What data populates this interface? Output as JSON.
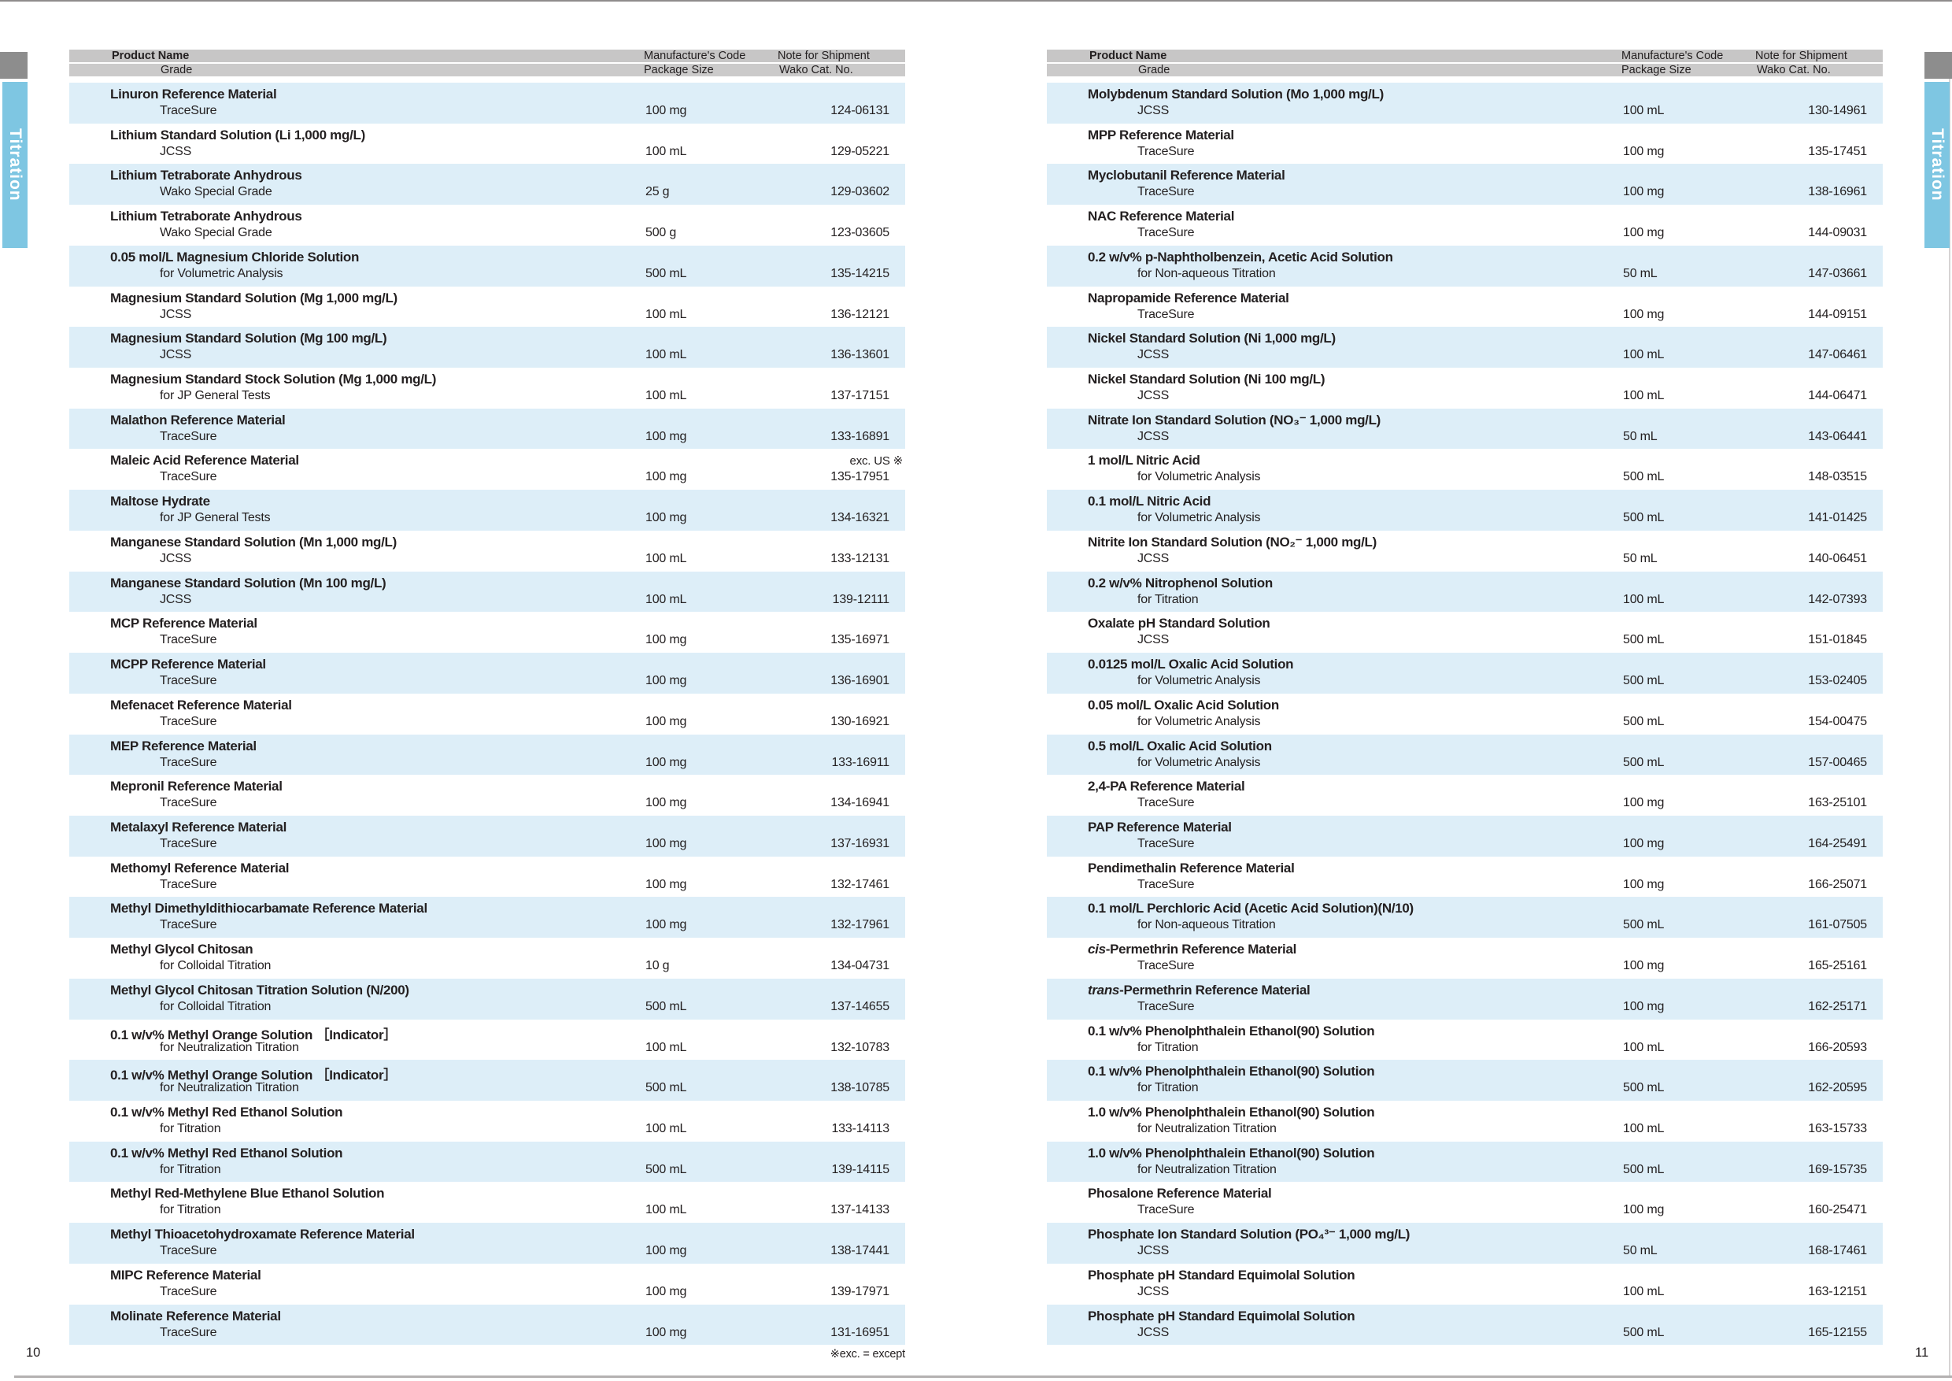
{
  "page": {
    "left_page_number": "10",
    "right_page_number": "11",
    "footnote": "※exc. = except",
    "side_tab_label": "Titration"
  },
  "colors": {
    "tab_blue": "#7ec6e2",
    "row_stripe_blue": "#ddeef8",
    "header_gray": "#c7c6c6",
    "corner_gray": "#8d8d8d"
  },
  "table_headers": {
    "col1_line1": "Product Name",
    "col1_line2": "Grade",
    "col2_line1": "Manufacture's Code",
    "col2_line2": "Package Size",
    "col3_line1": "Note for Shipment",
    "col3_line2": "Wako Cat. No."
  },
  "left_table": {
    "rows": [
      {
        "name": "Linuron Reference Material",
        "grade": "TraceSure",
        "size": "100 mg",
        "cat": "124-06131"
      },
      {
        "name": "Lithium Standard Solution (Li 1,000 mg/L)",
        "grade": "JCSS",
        "size": "100 mL",
        "cat": "129-05221"
      },
      {
        "name": "Lithium Tetraborate Anhydrous",
        "grade": "Wako Special Grade",
        "size": "25 g",
        "cat": "129-03602"
      },
      {
        "name": "Lithium Tetraborate Anhydrous",
        "grade": "Wako Special Grade",
        "size": "500 g",
        "cat": "123-03605"
      },
      {
        "name": "0.05 mol/L Magnesium Chloride Solution",
        "grade": "for Volumetric Analysis",
        "size": "500 mL",
        "cat": "135-14215"
      },
      {
        "name": "Magnesium Standard Solution (Mg 1,000 mg/L)",
        "grade": "JCSS",
        "size": "100 mL",
        "cat": "136-12121"
      },
      {
        "name": "Magnesium Standard Solution (Mg 100 mg/L)",
        "grade": "JCSS",
        "size": "100 mL",
        "cat": "136-13601"
      },
      {
        "name": "Magnesium Standard Stock Solution (Mg 1,000 mg/L)",
        "grade": "for JP General Tests",
        "size": "100 mL",
        "cat": "137-17151"
      },
      {
        "name": "Malathon Reference Material",
        "grade": "TraceSure",
        "size": "100 mg",
        "cat": "133-16891"
      },
      {
        "name": "Maleic Acid Reference Material",
        "grade": "TraceSure",
        "size": "100 mg",
        "cat": "135-17951",
        "note": "exc. US ※"
      },
      {
        "name": "Maltose Hydrate",
        "grade": "for JP General Tests",
        "size": "100 mg",
        "cat": "134-16321"
      },
      {
        "name": "Manganese Standard Solution (Mn 1,000 mg/L)",
        "grade": "JCSS",
        "size": "100 mL",
        "cat": "133-12131"
      },
      {
        "name": "Manganese Standard Solution (Mn 100 mg/L)",
        "grade": "JCSS",
        "size": "100 mL",
        "cat": "139-12111"
      },
      {
        "name": "MCP Reference Material",
        "grade": "TraceSure",
        "size": "100 mg",
        "cat": "135-16971"
      },
      {
        "name": "MCPP Reference Material",
        "grade": "TraceSure",
        "size": "100 mg",
        "cat": "136-16901"
      },
      {
        "name": "Mefenacet Reference Material",
        "grade": "TraceSure",
        "size": "100 mg",
        "cat": "130-16921"
      },
      {
        "name": "MEP Reference Material",
        "grade": "TraceSure",
        "size": "100 mg",
        "cat": "133-16911"
      },
      {
        "name": "Mepronil Reference Material",
        "grade": "TraceSure",
        "size": "100 mg",
        "cat": "134-16941"
      },
      {
        "name": "Metalaxyl Reference Material",
        "grade": "TraceSure",
        "size": "100 mg",
        "cat": "137-16931"
      },
      {
        "name": "Methomyl Reference Material",
        "grade": "TraceSure",
        "size": "100 mg",
        "cat": "132-17461"
      },
      {
        "name": "Methyl Dimethyldithiocarbamate Reference Material",
        "grade": "TraceSure",
        "size": "100 mg",
        "cat": "132-17961"
      },
      {
        "name": "Methyl Glycol Chitosan",
        "grade": "for Colloidal Titration",
        "size": "10 g",
        "cat": "134-04731"
      },
      {
        "name": "Methyl Glycol Chitosan Titration Solution (N/200)",
        "grade": "for Colloidal Titration",
        "size": "500 mL",
        "cat": "137-14655"
      },
      {
        "name": "0.1 w/v% Methyl Orange Solution ［Indicator］",
        "grade": "for Neutralization Titration",
        "size": "100 mL",
        "cat": "132-10783"
      },
      {
        "name": "0.1 w/v% Methyl Orange Solution ［Indicator］",
        "grade": "for Neutralization Titration",
        "size": "500 mL",
        "cat": "138-10785"
      },
      {
        "name": "0.1 w/v% Methyl Red Ethanol Solution",
        "grade": "for Titration",
        "size": "100 mL",
        "cat": "133-14113"
      },
      {
        "name": "0.1 w/v% Methyl Red Ethanol Solution",
        "grade": "for Titration",
        "size": "500 mL",
        "cat": "139-14115"
      },
      {
        "name": "Methyl Red-Methylene Blue Ethanol Solution",
        "grade": "for Titration",
        "size": "100 mL",
        "cat": "137-14133"
      },
      {
        "name": "Methyl Thioacetohydroxamate Reference Material",
        "grade": "TraceSure",
        "size": "100 mg",
        "cat": "138-17441"
      },
      {
        "name": "MIPC Reference Material",
        "grade": "TraceSure",
        "size": "100 mg",
        "cat": "139-17971"
      },
      {
        "name": "Molinate Reference Material",
        "grade": "TraceSure",
        "size": "100 mg",
        "cat": "131-16951"
      }
    ]
  },
  "right_table": {
    "rows": [
      {
        "name": "Molybdenum Standard Solution (Mo 1,000 mg/L)",
        "grade": "JCSS",
        "size": "100 mL",
        "cat": "130-14961"
      },
      {
        "name": "MPP Reference Material",
        "grade": "TraceSure",
        "size": "100 mg",
        "cat": "135-17451"
      },
      {
        "name": "Myclobutanil Reference Material",
        "grade": "TraceSure",
        "size": "100 mg",
        "cat": "138-16961"
      },
      {
        "name": "NAC Reference Material",
        "grade": "TraceSure",
        "size": "100 mg",
        "cat": "144-09031"
      },
      {
        "name": "0.2 w/v% p-Naphtholbenzein, Acetic Acid Solution",
        "grade": "for Non-aqueous Titration",
        "size": "50 mL",
        "cat": "147-03661"
      },
      {
        "name": "Napropamide Reference Material",
        "grade": "TraceSure",
        "size": "100 mg",
        "cat": "144-09151"
      },
      {
        "name": "Nickel Standard Solution (Ni 1,000 mg/L)",
        "grade": "JCSS",
        "size": "100 mL",
        "cat": "147-06461"
      },
      {
        "name": "Nickel Standard Solution (Ni 100 mg/L)",
        "grade": "JCSS",
        "size": "100 mL",
        "cat": "144-06471"
      },
      {
        "name": "Nitrate Ion Standard Solution (NO₃⁻ 1,000 mg/L)",
        "grade": "JCSS",
        "size": "50 mL",
        "cat": "143-06441"
      },
      {
        "name": "1 mol/L Nitric Acid",
        "grade": "for Volumetric Analysis",
        "size": "500 mL",
        "cat": "148-03515"
      },
      {
        "name": "0.1 mol/L Nitric Acid",
        "grade": "for Volumetric Analysis",
        "size": "500 mL",
        "cat": "141-01425"
      },
      {
        "name": "Nitrite Ion Standard Solution (NO₂⁻ 1,000 mg/L)",
        "grade": "JCSS",
        "size": "50 mL",
        "cat": "140-06451"
      },
      {
        "name": "0.2 w/v% Nitrophenol Solution",
        "grade": "for Titration",
        "size": "100 mL",
        "cat": "142-07393"
      },
      {
        "name": "Oxalate pH Standard Solution",
        "grade": "JCSS",
        "size": "500 mL",
        "cat": "151-01845"
      },
      {
        "name": "0.0125 mol/L Oxalic Acid Solution",
        "grade": "for Volumetric Analysis",
        "size": "500 mL",
        "cat": "153-02405"
      },
      {
        "name": "0.05 mol/L Oxalic Acid Solution",
        "grade": "for Volumetric Analysis",
        "size": "500 mL",
        "cat": "154-00475"
      },
      {
        "name": "0.5 mol/L Oxalic Acid Solution",
        "grade": "for Volumetric Analysis",
        "size": "500 mL",
        "cat": "157-00465"
      },
      {
        "name": "2,4-PA Reference Material",
        "grade": "TraceSure",
        "size": "100 mg",
        "cat": "163-25101"
      },
      {
        "name": "PAP Reference Material",
        "grade": "TraceSure",
        "size": "100 mg",
        "cat": "164-25491"
      },
      {
        "name": "Pendimethalin Reference Material",
        "grade": "TraceSure",
        "size": "100 mg",
        "cat": "166-25071"
      },
      {
        "name": "0.1 mol/L Perchloric Acid (Acetic Acid Solution)(N/10)",
        "grade": "for Non-aqueous Titration",
        "size": "500 mL",
        "cat": "161-07505"
      },
      {
        "name": "cis-Permethrin Reference Material",
        "grade": "TraceSure",
        "size": "100 mg",
        "cat": "165-25161"
      },
      {
        "name": "trans-Permethrin Reference Material",
        "grade": "TraceSure",
        "size": "100 mg",
        "cat": "162-25171"
      },
      {
        "name": "0.1 w/v% Phenolphthalein Ethanol(90) Solution",
        "grade": "for Titration",
        "size": "100 mL",
        "cat": "166-20593"
      },
      {
        "name": "0.1 w/v% Phenolphthalein Ethanol(90) Solution",
        "grade": "for Titration",
        "size": "500 mL",
        "cat": "162-20595"
      },
      {
        "name": "1.0 w/v% Phenolphthalein Ethanol(90) Solution",
        "grade": "for Neutralization Titration",
        "size": "100 mL",
        "cat": "163-15733"
      },
      {
        "name": "1.0 w/v% Phenolphthalein Ethanol(90) Solution",
        "grade": "for Neutralization Titration",
        "size": "500 mL",
        "cat": "169-15735"
      },
      {
        "name": "Phosalone Reference Material",
        "grade": "TraceSure",
        "size": "100 mg",
        "cat": "160-25471"
      },
      {
        "name": "Phosphate Ion Standard Solution (PO₄³⁻ 1,000 mg/L)",
        "grade": "JCSS",
        "size": "50 mL",
        "cat": "168-17461"
      },
      {
        "name": "Phosphate pH Standard Equimolal Solution",
        "grade": "JCSS",
        "size": "100 mL",
        "cat": "163-12151"
      },
      {
        "name": "Phosphate pH Standard Equimolal Solution",
        "grade": "JCSS",
        "size": "500 mL",
        "cat": "165-12155"
      }
    ]
  }
}
